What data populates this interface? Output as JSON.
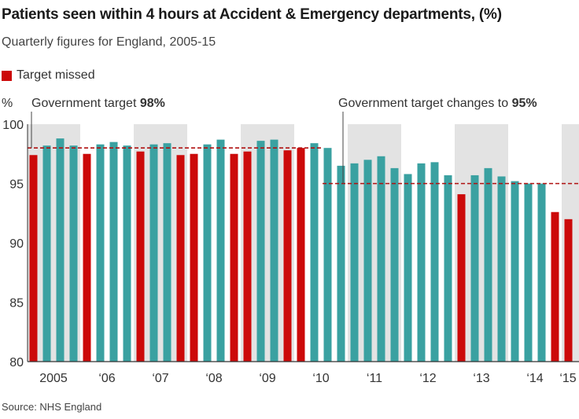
{
  "header": {
    "title": "Patients seen within 4 hours at Accident & Emergency departments, (%)",
    "subtitle": "Quarterly figures for England, 2005-15"
  },
  "legend": {
    "label": "Target missed",
    "color": "#cc0a0a"
  },
  "footer": {
    "source": "Source: NHS England"
  },
  "colors": {
    "met": "#3aa1a1",
    "missed": "#cc0a0a",
    "band": "#e3e3e3",
    "target_line": "#b01010"
  },
  "chart_data": {
    "type": "bar",
    "title": "Patients seen within 4 hours at Accident & Emergency departments, (%)",
    "subtitle": "Quarterly figures for England, 2005-15",
    "ylabel": "%",
    "ylim": [
      80,
      100
    ],
    "yticks": [
      80,
      85,
      90,
      95,
      100
    ],
    "year_labels": [
      "2005",
      "‘06",
      "‘07",
      "‘08",
      "‘09",
      "‘10",
      "‘11",
      "‘12",
      "‘13",
      "‘14",
      "‘15"
    ],
    "values": [
      97.4,
      98.2,
      98.8,
      98.2,
      97.5,
      98.3,
      98.5,
      98.2,
      97.7,
      98.3,
      98.4,
      97.4,
      97.5,
      98.3,
      98.7,
      97.5,
      97.7,
      98.6,
      98.7,
      97.8,
      98.0,
      98.4,
      98.0,
      96.5,
      96.7,
      97.0,
      97.3,
      96.3,
      95.8,
      96.7,
      96.8,
      95.7,
      94.1,
      95.7,
      96.3,
      95.6,
      95.2,
      95.0,
      95.0,
      92.6,
      92.0
    ],
    "missed": [
      1,
      0,
      0,
      0,
      1,
      0,
      0,
      0,
      1,
      0,
      0,
      1,
      1,
      0,
      0,
      1,
      1,
      0,
      0,
      1,
      1,
      0,
      0,
      0,
      0,
      0,
      0,
      0,
      0,
      0,
      0,
      0,
      1,
      0,
      0,
      0,
      0,
      0,
      0,
      1,
      1
    ],
    "target_98": {
      "value": 98,
      "label_text": "Government target ",
      "label_bold": "98%"
    },
    "target_95": {
      "value": 95,
      "label_text": "Government target changes to ",
      "label_bold": "95%"
    },
    "grid": true,
    "legend_position": "top-left"
  }
}
